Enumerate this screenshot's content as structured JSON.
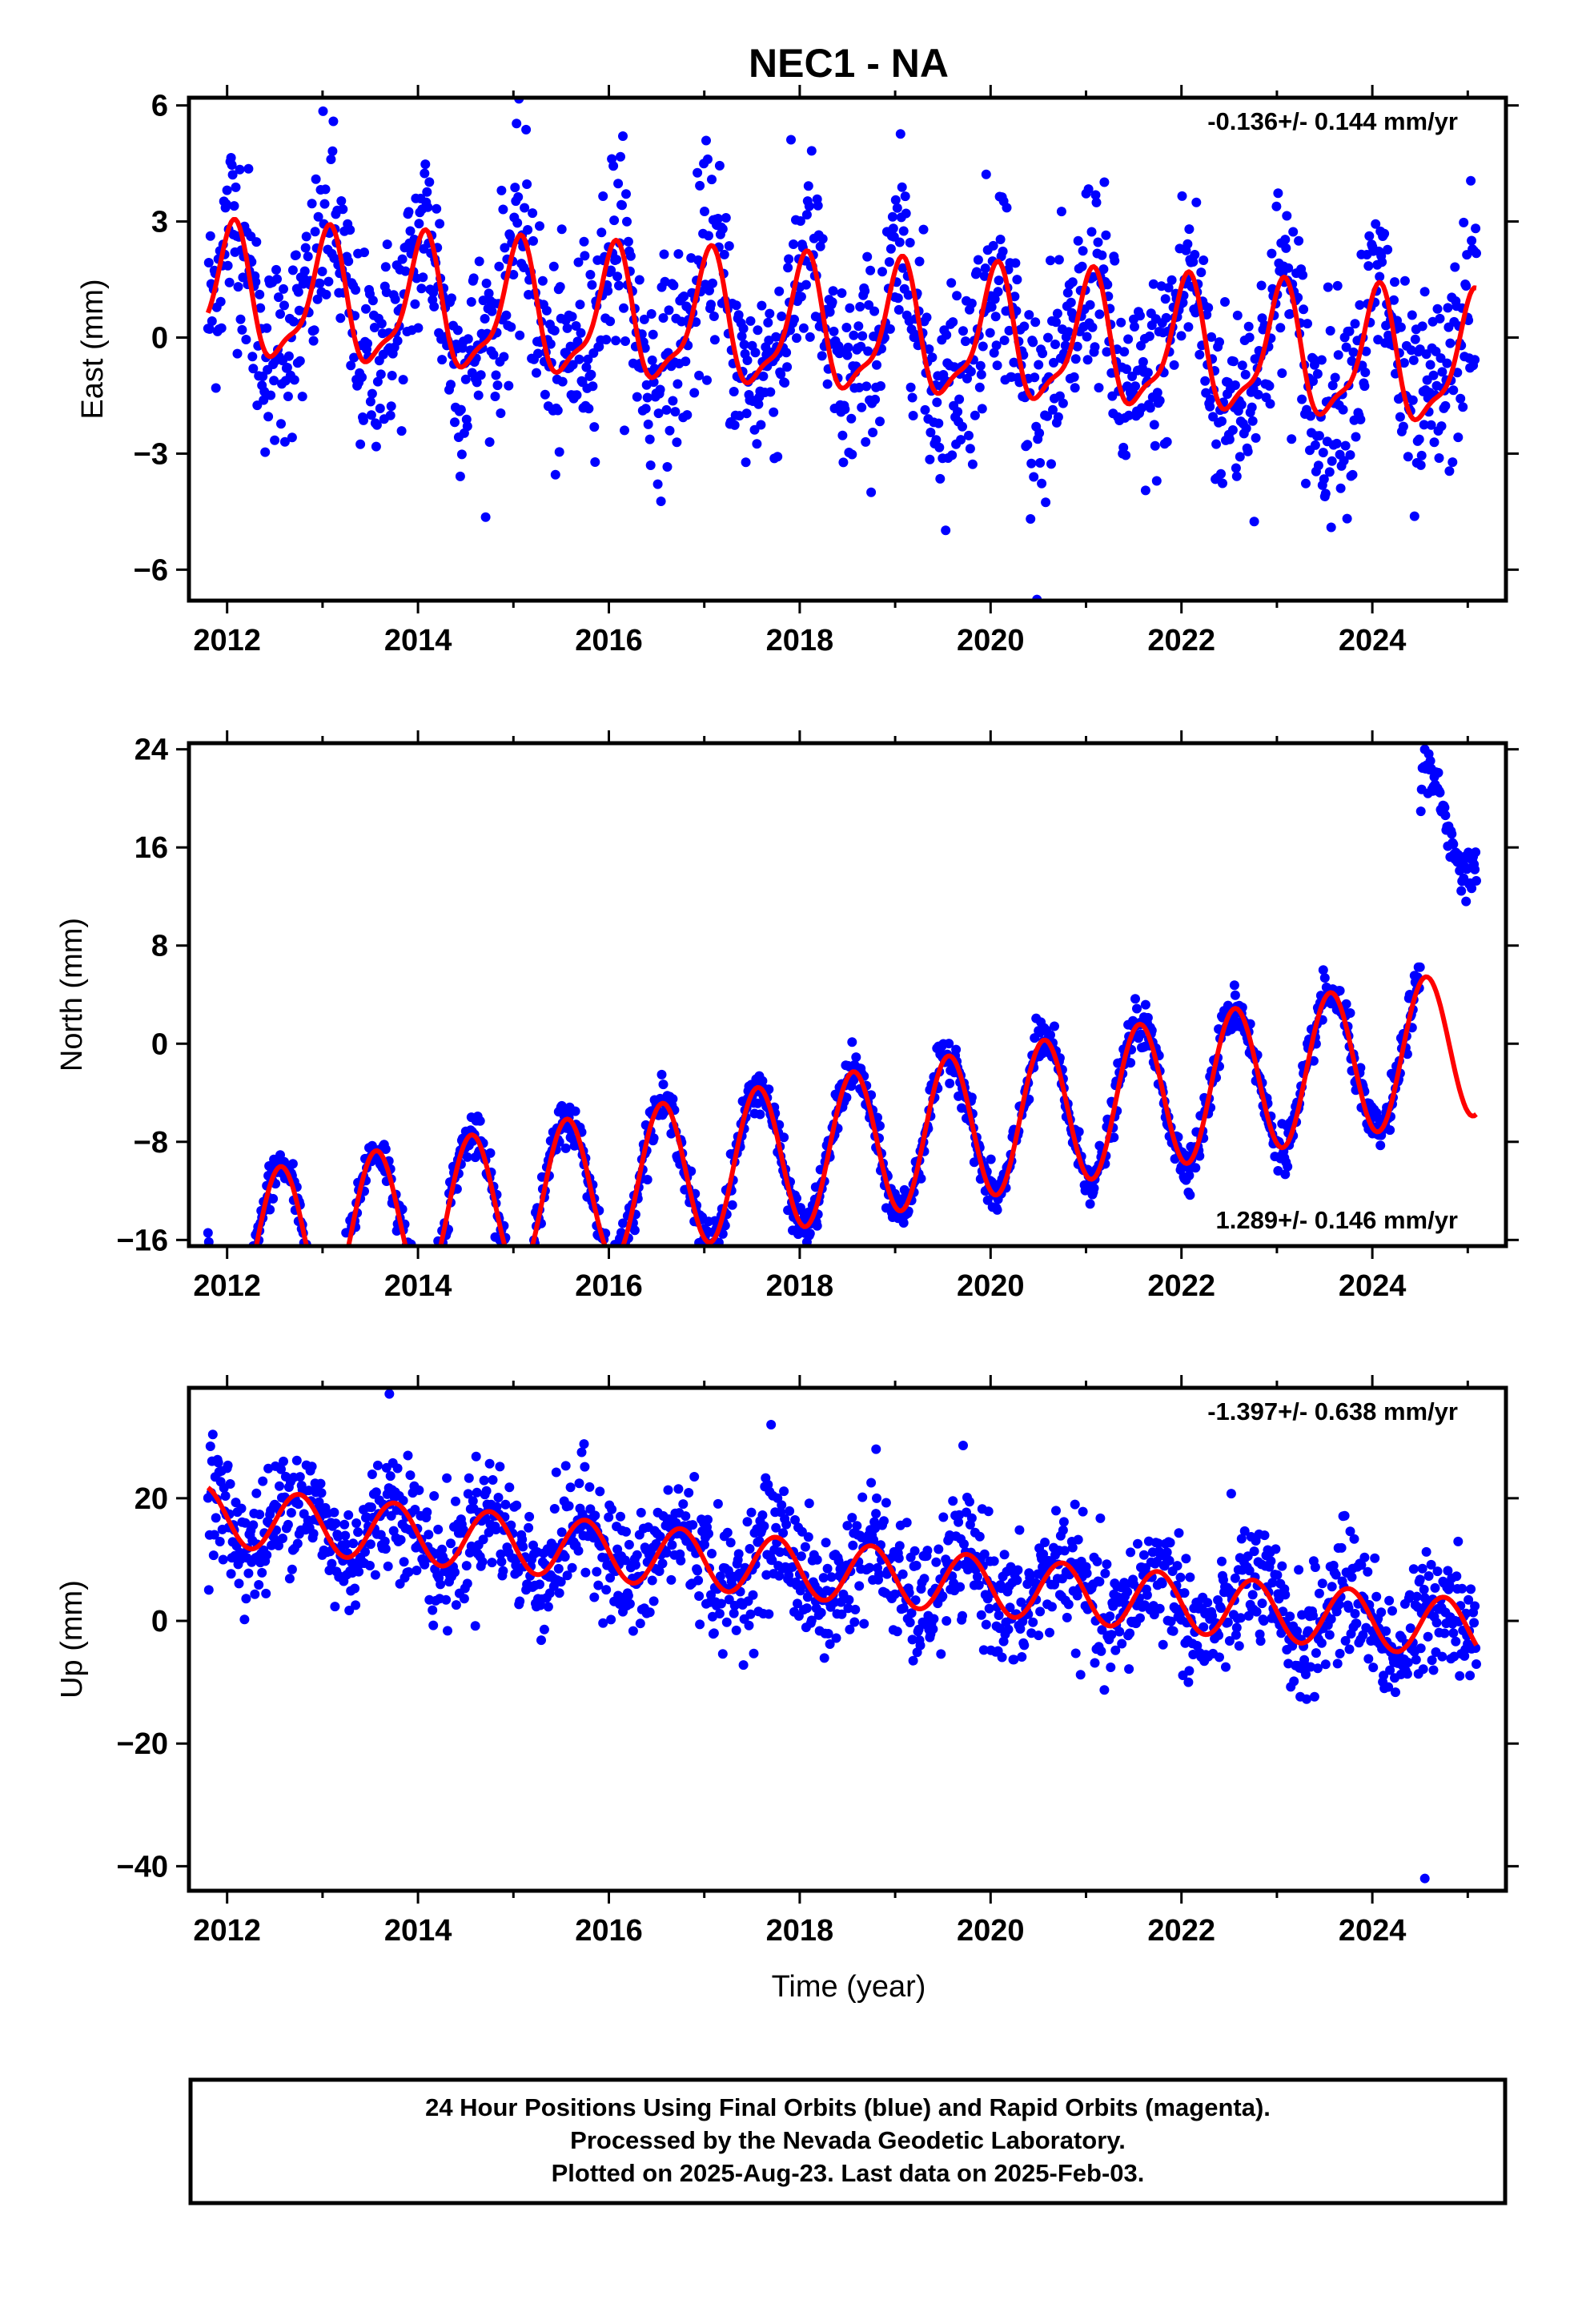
{
  "title": "NEC1 - NA",
  "xlabel": "Time (year)",
  "caption": [
    "24 Hour Positions Using Final Orbits (blue) and Rapid Orbits (magenta).",
    "Processed by the Nevada Geodetic Laboratory.",
    "Plotted on 2025-Aug-23. Last data on 2025-Feb-03."
  ],
  "colors": {
    "data": "#0000ff",
    "model": "#ff0000",
    "frame": "#000000"
  },
  "chart_data": [
    {
      "type": "scatter",
      "ylabel": "East (mm)",
      "rate": "-0.136+/- 0.144 mm/yr",
      "rate_position": "top-right",
      "xlim": [
        2011.6,
        2025.4
      ],
      "ylim": [
        -6.8,
        6.2
      ],
      "xticks": [
        2012,
        2014,
        2016,
        2018,
        2020,
        2022,
        2024
      ],
      "xtick_labels": [
        "2012",
        "2014",
        "2016",
        "2018",
        "2020",
        "2022",
        "2024"
      ],
      "yticks": [
        -6,
        -3,
        0,
        3,
        6
      ],
      "ytick_labels": [
        "−6",
        "−3",
        "0",
        "3",
        "6"
      ],
      "series": [
        {
          "kind": "points",
          "x_start": 2011.8,
          "x_end": 2025.09,
          "trend_mm_per_yr": -0.136,
          "intercept_mm": 0.2,
          "annual_amp_mm": 1.6,
          "annual_peak_phase_yr": 0.05,
          "semiannual_amp_mm": 0.5,
          "semiannual_peak_phase_yr": 0.1,
          "scatter_sd_mm": 1.3
        },
        {
          "kind": "model",
          "x_start": 2011.8,
          "x_end": 2025.09,
          "trend_mm_per_yr": -0.136,
          "intercept_mm": 0.2,
          "annual_amp_mm": 1.6,
          "annual_peak_phase_yr": 0.05,
          "semiannual_amp_mm": 0.5,
          "semiannual_peak_phase_yr": 0.1
        }
      ]
    },
    {
      "type": "scatter",
      "ylabel": "North (mm)",
      "rate": "1.289+/- 0.146 mm/yr",
      "rate_position": "bottom-right",
      "xlim": [
        2011.6,
        2025.4
      ],
      "ylim": [
        -16.5,
        24.5
      ],
      "xticks": [
        2012,
        2014,
        2016,
        2018,
        2020,
        2022,
        2024
      ],
      "xtick_labels": [
        "2012",
        "2014",
        "2016",
        "2018",
        "2020",
        "2022",
        "2024"
      ],
      "yticks": [
        -16,
        -8,
        0,
        8,
        16,
        24
      ],
      "ytick_labels": [
        "−16",
        "−8",
        "0",
        "8",
        "16",
        "24"
      ],
      "series": [
        {
          "kind": "points",
          "x_start": 2011.8,
          "x_end": 2025.09,
          "trend_mm_per_yr": 1.289,
          "intercept_mm": -9.0,
          "annual_amp_mm": 6.0,
          "annual_peak_phase_yr": 0.56,
          "semiannual_amp_mm": 0.0,
          "semiannual_peak_phase_yr": 0.0,
          "scatter_sd_mm": 0.9
        },
        {
          "kind": "model",
          "x_start": 2011.8,
          "x_end": 2025.09,
          "trend_mm_per_yr": 1.289,
          "intercept_mm": -9.0,
          "annual_amp_mm": 6.0,
          "annual_peak_phase_yr": 0.56,
          "semiannual_amp_mm": 0.0,
          "semiannual_peak_phase_yr": 0.0
        },
        {
          "kind": "excursion",
          "x": [
            2024.5,
            2024.55,
            2024.7,
            2024.85,
            2025.0,
            2025.09
          ],
          "y": [
            20,
            23.5,
            20,
            16,
            13.5,
            14.5
          ]
        }
      ]
    },
    {
      "type": "scatter",
      "ylabel": "Up (mm)",
      "rate": "-1.397+/- 0.638 mm/yr",
      "rate_position": "top-right",
      "xlim": [
        2011.6,
        2025.4
      ],
      "ylim": [
        -44,
        38
      ],
      "xticks": [
        2012,
        2014,
        2016,
        2018,
        2020,
        2022,
        2024
      ],
      "xtick_labels": [
        "2012",
        "2014",
        "2016",
        "2018",
        "2020",
        "2022",
        "2024"
      ],
      "yticks": [
        -40,
        -20,
        0,
        20
      ],
      "ytick_labels": [
        "−40",
        "−20",
        "0",
        "20"
      ],
      "series": [
        {
          "kind": "points",
          "x_start": 2011.8,
          "x_end": 2025.09,
          "trend_mm_per_yr": -1.397,
          "intercept_mm": 8.5,
          "annual_amp_mm": 4.8,
          "annual_peak_phase_yr": 0.75,
          "semiannual_amp_mm": 0.0,
          "semiannual_peak_phase_yr": 0.0,
          "scatter_sd_mm": 5.0
        },
        {
          "kind": "model",
          "x_start": 2011.8,
          "x_end": 2025.09,
          "trend_mm_per_yr": -1.397,
          "intercept_mm": 8.5,
          "annual_amp_mm": 4.8,
          "annual_peak_phase_yr": 0.75,
          "semiannual_amp_mm": 0.0,
          "semiannual_peak_phase_yr": 0.0
        },
        {
          "kind": "outliers",
          "x": [
            2013.7,
            2017.7,
            2018.8,
            2024.55
          ],
          "y": [
            37,
            32,
            28,
            -42
          ]
        }
      ]
    }
  ]
}
